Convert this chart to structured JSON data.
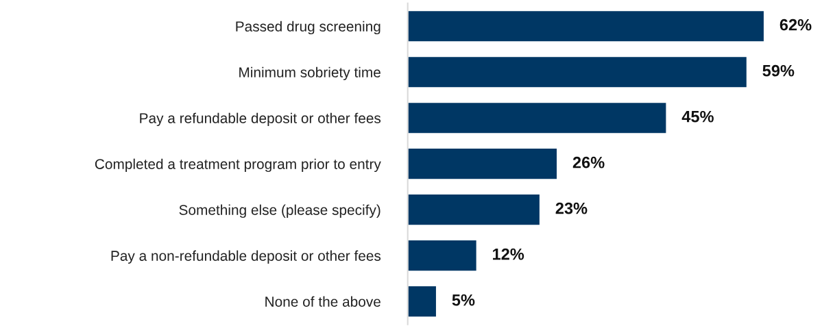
{
  "chart_data": {
    "type": "bar",
    "orientation": "horizontal",
    "categories": [
      "Passed drug screening",
      "Minimum sobriety time",
      "Pay a refundable deposit or other fees",
      "Completed a treatment program prior to entry",
      "Something else (please specify)",
      "Pay a non-refundable deposit or other fees",
      "None of the above"
    ],
    "values": [
      62,
      59,
      45,
      26,
      23,
      12,
      5
    ],
    "value_labels": [
      "62%",
      "59%",
      "45%",
      "26%",
      "23%",
      "12%",
      "5%"
    ],
    "color": "#003764",
    "grid": false,
    "legend": false
  }
}
